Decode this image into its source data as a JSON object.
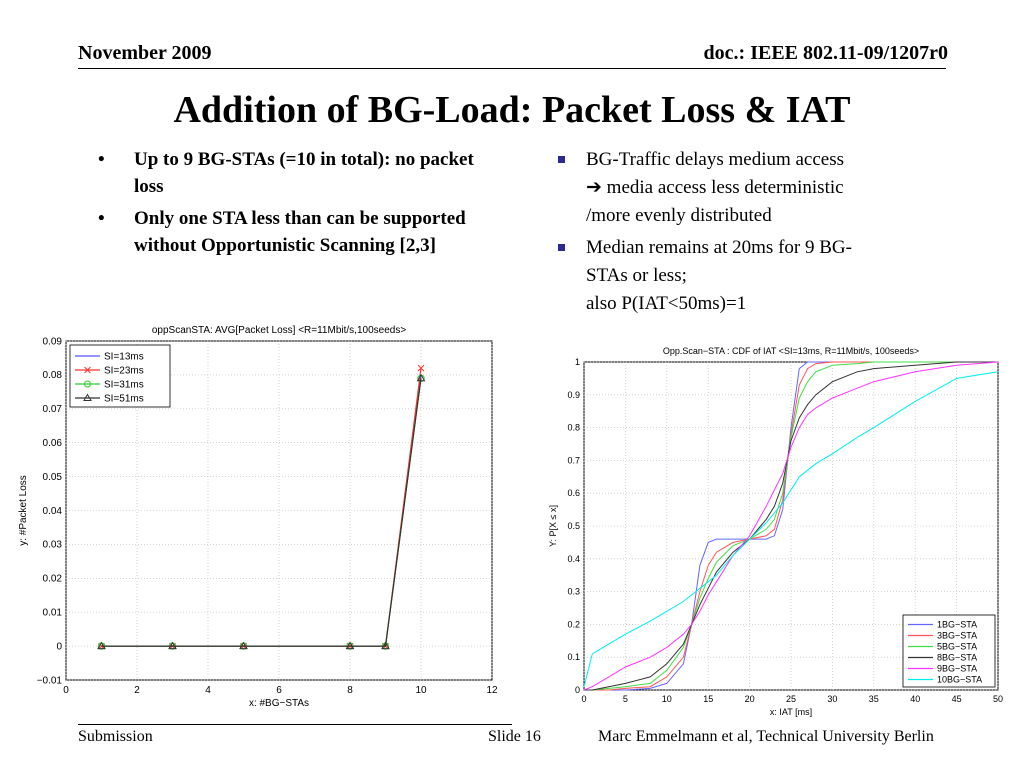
{
  "header": {
    "date": "November 2009",
    "doc": "doc.: IEEE 802.11-09/1207r0"
  },
  "title": "Addition of BG-Load: Packet Loss & IAT",
  "left_bullets": [
    "Up to 9 BG-STAs (=10 in total): no packet loss",
    "Only one STA less than can be supported without Opportunistic Scanning [2,3]"
  ],
  "right_bullets": [
    {
      "line1": "BG-Traffic delays medium access",
      "line2": "➔ media access less deterministic",
      "line3": "/more evenly distributed"
    },
    {
      "line1": "Median remains at 20ms for 9 BG-",
      "line2": "STAs or less;",
      "line3": "also P(IAT<50ms)=1"
    }
  ],
  "footer": {
    "left": "Submission",
    "slide": "Slide 16",
    "author": "Marc Emmelmann et al, Technical University Berlin"
  },
  "chart_data": [
    {
      "type": "line",
      "title": "oppScanSTA: AVG[Packet Loss] <R=11Mbit/s,100seeds>",
      "xlabel": "x: #BG−STAs",
      "ylabel": "y: #Packet Loss",
      "xlim": [
        0,
        12
      ],
      "ylim": [
        -0.01,
        0.09
      ],
      "xticks": [
        0,
        2,
        4,
        6,
        8,
        10,
        12
      ],
      "yticks": [
        -0.01,
        0,
        0.01,
        0.02,
        0.03,
        0.04,
        0.05,
        0.06,
        0.07,
        0.08,
        0.09
      ],
      "ytick_labels": [
        "−0.01",
        "0",
        "0.01",
        "0.02",
        "0.03",
        "0.04",
        "0.05",
        "0.06",
        "0.07",
        "0.08",
        "0.09"
      ],
      "grid": true,
      "legend_position": "top-left",
      "x": [
        1,
        3,
        5,
        8,
        9,
        10
      ],
      "series": [
        {
          "name": "SI=13ms",
          "color": "#5555ff",
          "marker": "none",
          "values": [
            0,
            0,
            0,
            0,
            0,
            0.08
          ]
        },
        {
          "name": "SI=23ms",
          "color": "#ff3333",
          "marker": "x",
          "values": [
            0,
            0,
            0,
            0,
            0,
            0.082
          ]
        },
        {
          "name": "SI=31ms",
          "color": "#33cc33",
          "marker": "circle",
          "values": [
            0,
            0,
            0,
            0,
            0,
            0.079
          ]
        },
        {
          "name": "SI=51ms",
          "color": "#333333",
          "marker": "triangle",
          "values": [
            0,
            0,
            0,
            0,
            0,
            0.079
          ]
        }
      ]
    },
    {
      "type": "line",
      "title": "Opp.Scan−STA : CDF of IAT <SI=13ms, R=11Mbit/s, 100seeds>",
      "xlabel": "x: IAT [ms]",
      "ylabel": "Y: P[X ≤ x]",
      "xlim": [
        0,
        50
      ],
      "ylim": [
        0,
        1
      ],
      "xticks": [
        0,
        5,
        10,
        15,
        20,
        25,
        30,
        35,
        40,
        45,
        50
      ],
      "yticks": [
        0,
        0.1,
        0.2,
        0.3,
        0.4,
        0.5,
        0.6,
        0.7,
        0.8,
        0.9,
        1
      ],
      "grid": true,
      "legend_position": "bottom-right",
      "x": [
        0,
        1,
        3,
        5,
        8,
        10,
        12,
        13,
        14,
        15,
        16,
        18,
        20,
        22,
        23,
        24,
        25,
        26,
        27,
        28,
        30,
        33,
        35,
        40,
        45,
        50
      ],
      "series": [
        {
          "name": "1BG−STA",
          "color": "#6666ff",
          "values": [
            0,
            0,
            0,
            0,
            0.005,
            0.02,
            0.08,
            0.2,
            0.38,
            0.45,
            0.46,
            0.46,
            0.46,
            0.46,
            0.47,
            0.55,
            0.8,
            0.98,
            1,
            1,
            1,
            1,
            1,
            1,
            1,
            1
          ]
        },
        {
          "name": "3BG−STA",
          "color": "#ff5555",
          "values": [
            0,
            0,
            0,
            0.005,
            0.01,
            0.04,
            0.1,
            0.2,
            0.3,
            0.38,
            0.42,
            0.45,
            0.46,
            0.47,
            0.49,
            0.58,
            0.78,
            0.93,
            0.98,
            0.995,
            1,
            1,
            1,
            1,
            1,
            1
          ]
        },
        {
          "name": "5BG−STA",
          "color": "#44dd44",
          "values": [
            0,
            0,
            0.005,
            0.01,
            0.02,
            0.06,
            0.13,
            0.2,
            0.28,
            0.34,
            0.39,
            0.44,
            0.46,
            0.49,
            0.52,
            0.6,
            0.77,
            0.89,
            0.94,
            0.97,
            0.99,
            0.995,
            1,
            1,
            1,
            1
          ]
        },
        {
          "name": "8BG−STA",
          "color": "#333333",
          "values": [
            0,
            0,
            0.01,
            0.02,
            0.04,
            0.08,
            0.14,
            0.2,
            0.26,
            0.31,
            0.36,
            0.42,
            0.46,
            0.52,
            0.56,
            0.63,
            0.76,
            0.83,
            0.87,
            0.9,
            0.94,
            0.97,
            0.98,
            0.99,
            1,
            1
          ]
        },
        {
          "name": "9BG−STA",
          "color": "#ff33ff",
          "values": [
            0,
            0.01,
            0.04,
            0.07,
            0.1,
            0.13,
            0.17,
            0.2,
            0.24,
            0.29,
            0.33,
            0.41,
            0.47,
            0.56,
            0.61,
            0.66,
            0.74,
            0.8,
            0.84,
            0.86,
            0.89,
            0.92,
            0.94,
            0.97,
            0.99,
            1
          ]
        },
        {
          "name": "10BG−STA",
          "color": "#00eeee",
          "values": [
            0.01,
            0.11,
            0.14,
            0.17,
            0.21,
            0.24,
            0.27,
            0.29,
            0.31,
            0.33,
            0.35,
            0.41,
            0.46,
            0.51,
            0.54,
            0.57,
            0.61,
            0.65,
            0.67,
            0.69,
            0.72,
            0.77,
            0.8,
            0.88,
            0.95,
            0.97
          ]
        }
      ]
    }
  ]
}
